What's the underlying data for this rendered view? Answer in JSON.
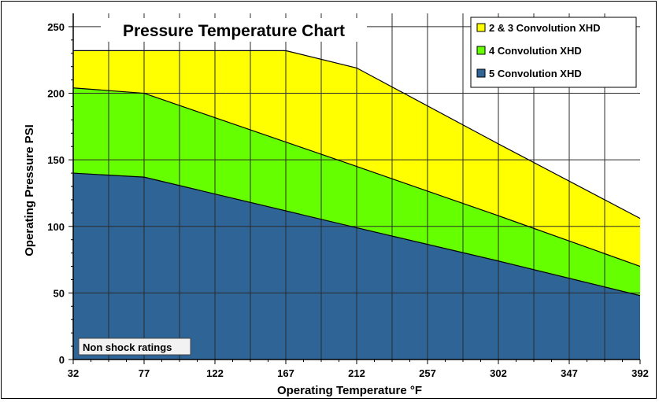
{
  "chart_data": {
    "type": "area",
    "title": "Pressure Temperature Chart",
    "xlabel": "Operating Temperature °F",
    "ylabel": "Operating Pressure PSI",
    "x_ticks": [
      "32",
      "77",
      "122",
      "167",
      "212",
      "257",
      "302",
      "347",
      "392"
    ],
    "y_ticks": [
      "0",
      "50",
      "100",
      "150",
      "200",
      "250"
    ],
    "xlim": [
      32,
      392
    ],
    "ylim": [
      0,
      260
    ],
    "grid": true,
    "legend_position": "top-right",
    "annotation": "Non shock ratings",
    "series": [
      {
        "name": "2 & 3 Convolution XHD",
        "color": "#ffff00",
        "points": [
          [
            32,
            232
          ],
          [
            77,
            232
          ],
          [
            167,
            232
          ],
          [
            212,
            219
          ],
          [
            302,
            162
          ],
          [
            392,
            106
          ]
        ]
      },
      {
        "name": "4 Convolution XHD",
        "color": "#66ff00",
        "points": [
          [
            32,
            204
          ],
          [
            77,
            200
          ],
          [
            212,
            145
          ],
          [
            302,
            108
          ],
          [
            392,
            70
          ]
        ]
      },
      {
        "name": "5 Convolution XHD",
        "color": "#2e6596",
        "points": [
          [
            32,
            140
          ],
          [
            77,
            137
          ],
          [
            212,
            99
          ],
          [
            302,
            74
          ],
          [
            392,
            48
          ]
        ]
      }
    ]
  }
}
